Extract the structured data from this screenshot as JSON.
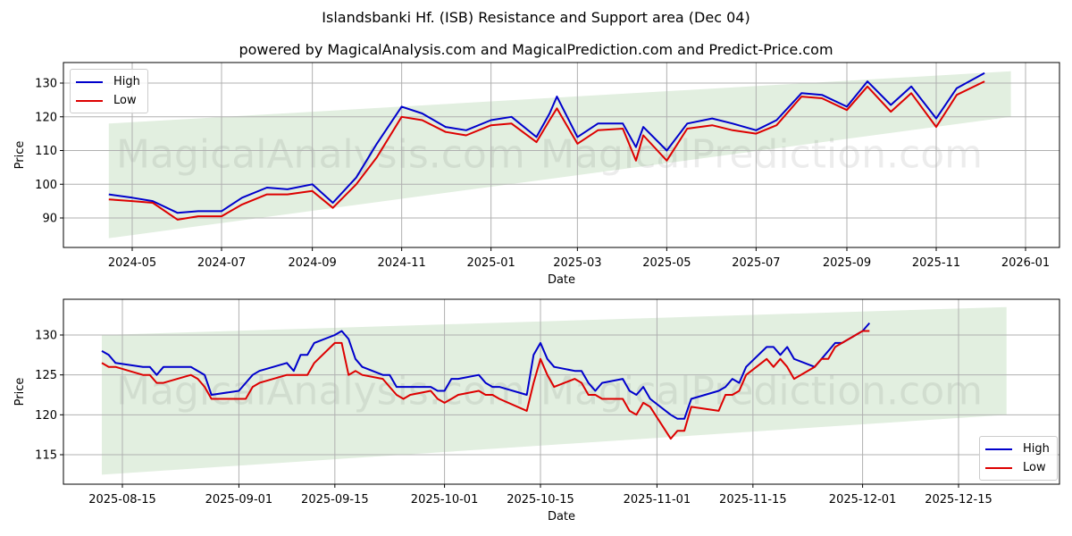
{
  "header": {
    "title": "Islandsbanki Hf. (ISB) Resistance and Support area (Dec 04)",
    "subtitle": "powered by MagicalAnalysis.com and MagicalPrediction.com and Predict-Price.com"
  },
  "watermarks": [
    "MagicalAnalysis.com",
    "MagicalPrediction.com"
  ],
  "colors": {
    "high": "#0000cc",
    "low": "#dd0000",
    "band": "#e2efe0",
    "grid": "#b0b0b0"
  },
  "legend": {
    "high_label": "High",
    "low_label": "Low"
  },
  "chart_data": [
    {
      "type": "line",
      "title": "Islandsbanki Hf. (ISB) Resistance and Support area (Dec 04) - full history",
      "xlabel": "Date",
      "ylabel": "Price",
      "ylim": [
        81,
        136
      ],
      "yticks": [
        90,
        100,
        110,
        120,
        130
      ],
      "xticks": [
        "2024-05",
        "2024-07",
        "2024-09",
        "2024-11",
        "2025-01",
        "2025-03",
        "2025-05",
        "2025-07",
        "2025-09",
        "2025-11",
        "2026-01"
      ],
      "grid": true,
      "legend_position": "upper left",
      "band": {
        "start": "2024-04-15",
        "end": "2025-12-22",
        "upper": [
          118,
          133.5
        ],
        "lower": [
          84,
          120
        ]
      },
      "x": [
        "2024-04-15",
        "2024-05-01",
        "2024-05-15",
        "2024-06-01",
        "2024-06-15",
        "2024-07-01",
        "2024-07-15",
        "2024-08-01",
        "2024-08-15",
        "2024-09-01",
        "2024-09-15",
        "2024-10-01",
        "2024-10-15",
        "2024-11-01",
        "2024-11-15",
        "2024-12-01",
        "2024-12-15",
        "2025-01-01",
        "2025-01-15",
        "2025-02-01",
        "2025-02-10",
        "2025-02-15",
        "2025-03-01",
        "2025-03-15",
        "2025-04-01",
        "2025-04-10",
        "2025-04-15",
        "2025-05-01",
        "2025-05-15",
        "2025-06-01",
        "2025-06-15",
        "2025-07-01",
        "2025-07-15",
        "2025-08-01",
        "2025-08-15",
        "2025-09-01",
        "2025-09-15",
        "2025-10-01",
        "2025-10-15",
        "2025-11-01",
        "2025-11-15",
        "2025-12-04"
      ],
      "series": [
        {
          "name": "High",
          "values": [
            97,
            96,
            95,
            91.5,
            92,
            92,
            96,
            99,
            98.5,
            100,
            94.5,
            102,
            112,
            123,
            121,
            117,
            116,
            119,
            120,
            114,
            121,
            126,
            114,
            118,
            118,
            111,
            117,
            110,
            118,
            119.5,
            118,
            116,
            119,
            127,
            126.5,
            123,
            130.5,
            123.5,
            129,
            119.5,
            128.5,
            133
          ]
        },
        {
          "name": "Low",
          "values": [
            95.5,
            95,
            94.5,
            89.5,
            90.5,
            90.5,
            94,
            97,
            97,
            98,
            93,
            100,
            108,
            120,
            119,
            115.5,
            114.5,
            117.5,
            118,
            112.5,
            119,
            122.5,
            112,
            116,
            116.5,
            107,
            114.5,
            107,
            116.5,
            117.5,
            116,
            115,
            117.5,
            126,
            125.5,
            122,
            129,
            121.5,
            127,
            117,
            126.5,
            130.5
          ]
        }
      ]
    },
    {
      "type": "line",
      "title": "Islandsbanki Hf. (ISB) Resistance and Support area (Dec 04) - recent",
      "xlabel": "Date",
      "ylabel": "Price",
      "ylim": [
        111,
        134.5
      ],
      "yticks": [
        115,
        120,
        125,
        130
      ],
      "xticks": [
        "2025-08-15",
        "2025-09-01",
        "2025-09-15",
        "2025-10-01",
        "2025-10-15",
        "2025-11-01",
        "2025-11-15",
        "2025-12-01",
        "2025-12-15"
      ],
      "grid": true,
      "legend_position": "lower right",
      "band": {
        "start": "2025-08-12",
        "end": "2025-12-22",
        "upper": [
          130,
          133.5
        ],
        "lower": [
          112.5,
          120
        ]
      },
      "x": [
        "2025-08-12",
        "2025-08-13",
        "2025-08-14",
        "2025-08-18",
        "2025-08-19",
        "2025-08-20",
        "2025-08-21",
        "2025-08-25",
        "2025-08-26",
        "2025-08-27",
        "2025-08-28",
        "2025-09-01",
        "2025-09-02",
        "2025-09-03",
        "2025-09-04",
        "2025-09-08",
        "2025-09-09",
        "2025-09-10",
        "2025-09-11",
        "2025-09-12",
        "2025-09-15",
        "2025-09-16",
        "2025-09-17",
        "2025-09-18",
        "2025-09-19",
        "2025-09-22",
        "2025-09-23",
        "2025-09-24",
        "2025-09-25",
        "2025-09-26",
        "2025-09-29",
        "2025-09-30",
        "2025-10-01",
        "2025-10-02",
        "2025-10-03",
        "2025-10-06",
        "2025-10-07",
        "2025-10-08",
        "2025-10-09",
        "2025-10-13",
        "2025-10-14",
        "2025-10-15",
        "2025-10-16",
        "2025-10-17",
        "2025-10-20",
        "2025-10-21",
        "2025-10-22",
        "2025-10-23",
        "2025-10-24",
        "2025-10-27",
        "2025-10-28",
        "2025-10-29",
        "2025-10-30",
        "2025-10-31",
        "2025-11-03",
        "2025-11-04",
        "2025-11-05",
        "2025-11-06",
        "2025-11-10",
        "2025-11-11",
        "2025-11-12",
        "2025-11-13",
        "2025-11-14",
        "2025-11-17",
        "2025-11-18",
        "2025-11-19",
        "2025-11-20",
        "2025-11-21",
        "2025-11-24",
        "2025-11-25",
        "2025-11-26",
        "2025-11-27",
        "2025-11-28",
        "2025-12-01",
        "2025-12-02"
      ],
      "series": [
        {
          "name": "High",
          "values": [
            128,
            127.5,
            126.5,
            126,
            126,
            125,
            126,
            126,
            125.5,
            125,
            122.5,
            123,
            124,
            125,
            125.5,
            126.5,
            125.5,
            127.5,
            127.5,
            129,
            130,
            130.5,
            129.5,
            127,
            126,
            125,
            125,
            123.5,
            123.5,
            123.5,
            123.5,
            123,
            123,
            124.5,
            124.5,
            125,
            124,
            123.5,
            123.5,
            122.5,
            127.5,
            129,
            127,
            126,
            125.5,
            125.5,
            124,
            123,
            124,
            124.5,
            123,
            122.5,
            123.5,
            122,
            120,
            119.5,
            119.5,
            122,
            123,
            123.5,
            124.5,
            124,
            126,
            128.5,
            128.5,
            127.5,
            128.5,
            127,
            126,
            127,
            128,
            129,
            129,
            130.5,
            131.5
          ]
        },
        {
          "name": "Low",
          "values": [
            126.5,
            126,
            126,
            125,
            125,
            124,
            124,
            125,
            124.5,
            123.5,
            122,
            122,
            122,
            123.5,
            124,
            125,
            125,
            125,
            125,
            126.5,
            129,
            129,
            125,
            125.5,
            125,
            124.5,
            123.5,
            122.5,
            122,
            122.5,
            123,
            122,
            121.5,
            122,
            122.5,
            123,
            122.5,
            122.5,
            122,
            120.5,
            124,
            127,
            125,
            123.5,
            124.5,
            124,
            122.5,
            122.5,
            122,
            122,
            120.5,
            120,
            121.5,
            121,
            117,
            118,
            118,
            121,
            120.5,
            122.5,
            122.5,
            123,
            125,
            127,
            126,
            127,
            126,
            124.5,
            126,
            127,
            127,
            128.5,
            129,
            130.5,
            130.5
          ]
        }
      ]
    }
  ]
}
